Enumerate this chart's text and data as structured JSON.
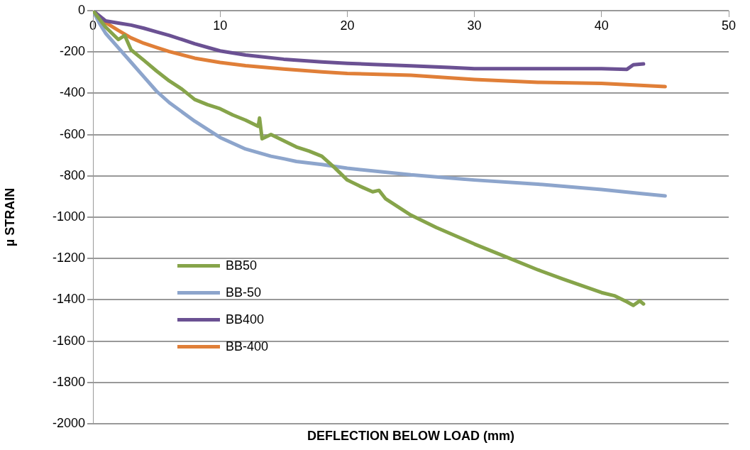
{
  "chart_data": {
    "type": "line",
    "xlabel": "DEFLECTION BELOW LOAD (mm)",
    "ylabel": "µ STRAIN",
    "xlim": [
      0,
      50
    ],
    "xticks": [
      0,
      10,
      20,
      30,
      40,
      50
    ],
    "ylim": [
      -2000,
      0
    ],
    "yticks": [
      -2000,
      -1800,
      -1600,
      -1400,
      -1200,
      -1000,
      -800,
      -600,
      -400,
      -200,
      0
    ],
    "grid": "y",
    "legend": "bottom left",
    "marker": "none",
    "line_style": "solid",
    "series": [
      {
        "name": "BB50",
        "color": "#86a44a",
        "x": [
          0,
          0.5,
          1,
          2,
          2.5,
          3,
          4,
          5,
          6,
          7,
          8,
          9,
          10,
          11,
          12,
          13,
          13.1,
          13.3,
          14,
          15,
          16,
          17,
          18,
          19,
          20,
          21,
          22,
          22.5,
          23,
          25,
          27,
          30,
          32,
          35,
          37,
          40,
          41,
          42,
          42.5,
          43,
          43.3
        ],
        "values": [
          0,
          -40,
          -80,
          -140,
          -120,
          -190,
          -240,
          -292,
          -340,
          -380,
          -430,
          -455,
          -475,
          -505,
          -530,
          -560,
          -520,
          -620,
          -600,
          -630,
          -660,
          -680,
          -705,
          -760,
          -820,
          -850,
          -877,
          -870,
          -910,
          -990,
          -1050,
          -1130,
          -1180,
          -1255,
          -1300,
          -1365,
          -1380,
          -1410,
          -1427,
          -1405,
          -1420
        ]
      },
      {
        "name": "BB-50",
        "color": "#8da5cc",
        "x": [
          0,
          0.5,
          1,
          2,
          3,
          4,
          5,
          6,
          8,
          10,
          12,
          14,
          15,
          16,
          18,
          20,
          25,
          30,
          35,
          40,
          43,
          45
        ],
        "values": [
          0,
          -60,
          -110,
          -180,
          -250,
          -320,
          -390,
          -445,
          -535,
          -614,
          -670,
          -705,
          -717,
          -730,
          -745,
          -763,
          -795,
          -820,
          -840,
          -866,
          -885,
          -897
        ]
      },
      {
        "name": "BB400",
        "color": "#6b5193",
        "x": [
          0,
          1,
          2,
          3,
          4,
          5,
          6,
          7,
          8,
          10,
          12,
          15,
          18,
          20,
          22,
          25,
          28,
          30,
          35,
          40,
          42,
          42.5,
          43.3
        ],
        "values": [
          0,
          -50,
          -60,
          -70,
          -85,
          -103,
          -120,
          -140,
          -160,
          -195,
          -215,
          -235,
          -248,
          -255,
          -260,
          -267,
          -275,
          -281,
          -281,
          -281,
          -284,
          -262,
          -258
        ]
      },
      {
        "name": "BB-400",
        "color": "#e07f38",
        "x": [
          0,
          1,
          2,
          3,
          4,
          5,
          6,
          8,
          10,
          12,
          15,
          18,
          20,
          25,
          30,
          35,
          40,
          45
        ],
        "values": [
          0,
          -58,
          -96,
          -132,
          -158,
          -178,
          -198,
          -230,
          -251,
          -266,
          -283,
          -296,
          -304,
          -313,
          -333,
          -347,
          -352,
          -368
        ]
      }
    ]
  }
}
